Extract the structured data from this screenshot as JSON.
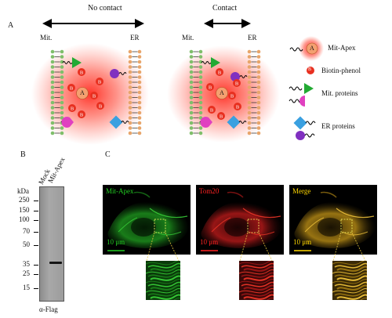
{
  "panel_a": {
    "label": "A",
    "left_header": "No contact",
    "right_header": "Contact",
    "left_mit": "Mit.",
    "left_er": "ER",
    "right_mit": "Mit.",
    "right_er": "ER",
    "apex_letter": "A",
    "biotin_letter": "B",
    "legend": [
      {
        "label": "Mit-Apex",
        "icon": "mit-apex-icon"
      },
      {
        "label": "Biotin-phenol",
        "icon": "biotin-phenol-icon"
      },
      {
        "label": "Mit. proteins",
        "icon": "mit-proteins-icon"
      },
      {
        "label": "ER proteins",
        "icon": "er-proteins-icon"
      }
    ],
    "colors": {
      "apex_glow": "#ff3b2f",
      "mit_green": "#22aa33",
      "mit_pink": "#e040c0",
      "er_blue": "#3aa0e0",
      "er_purple": "#8030c0",
      "membrane_green": "#7fbf6a",
      "membrane_orange": "#e8a56a"
    }
  },
  "panel_b": {
    "label": "B",
    "kda_label": "kDa",
    "lane_labels": [
      "Mock",
      "Mit-Apex"
    ],
    "markers": [
      "250",
      "150",
      "100",
      "70",
      "50",
      "35",
      "25",
      "15"
    ],
    "antibody_label": "α-Flag"
  },
  "panel_c": {
    "label": "C",
    "channels": [
      {
        "name": "Mit-Apex",
        "color": "#22cc22"
      },
      {
        "name": "Tom20",
        "color": "#ff2222"
      },
      {
        "name": "Merge",
        "color": "#ffd700"
      }
    ],
    "scale_bar_text": "10 μm"
  }
}
